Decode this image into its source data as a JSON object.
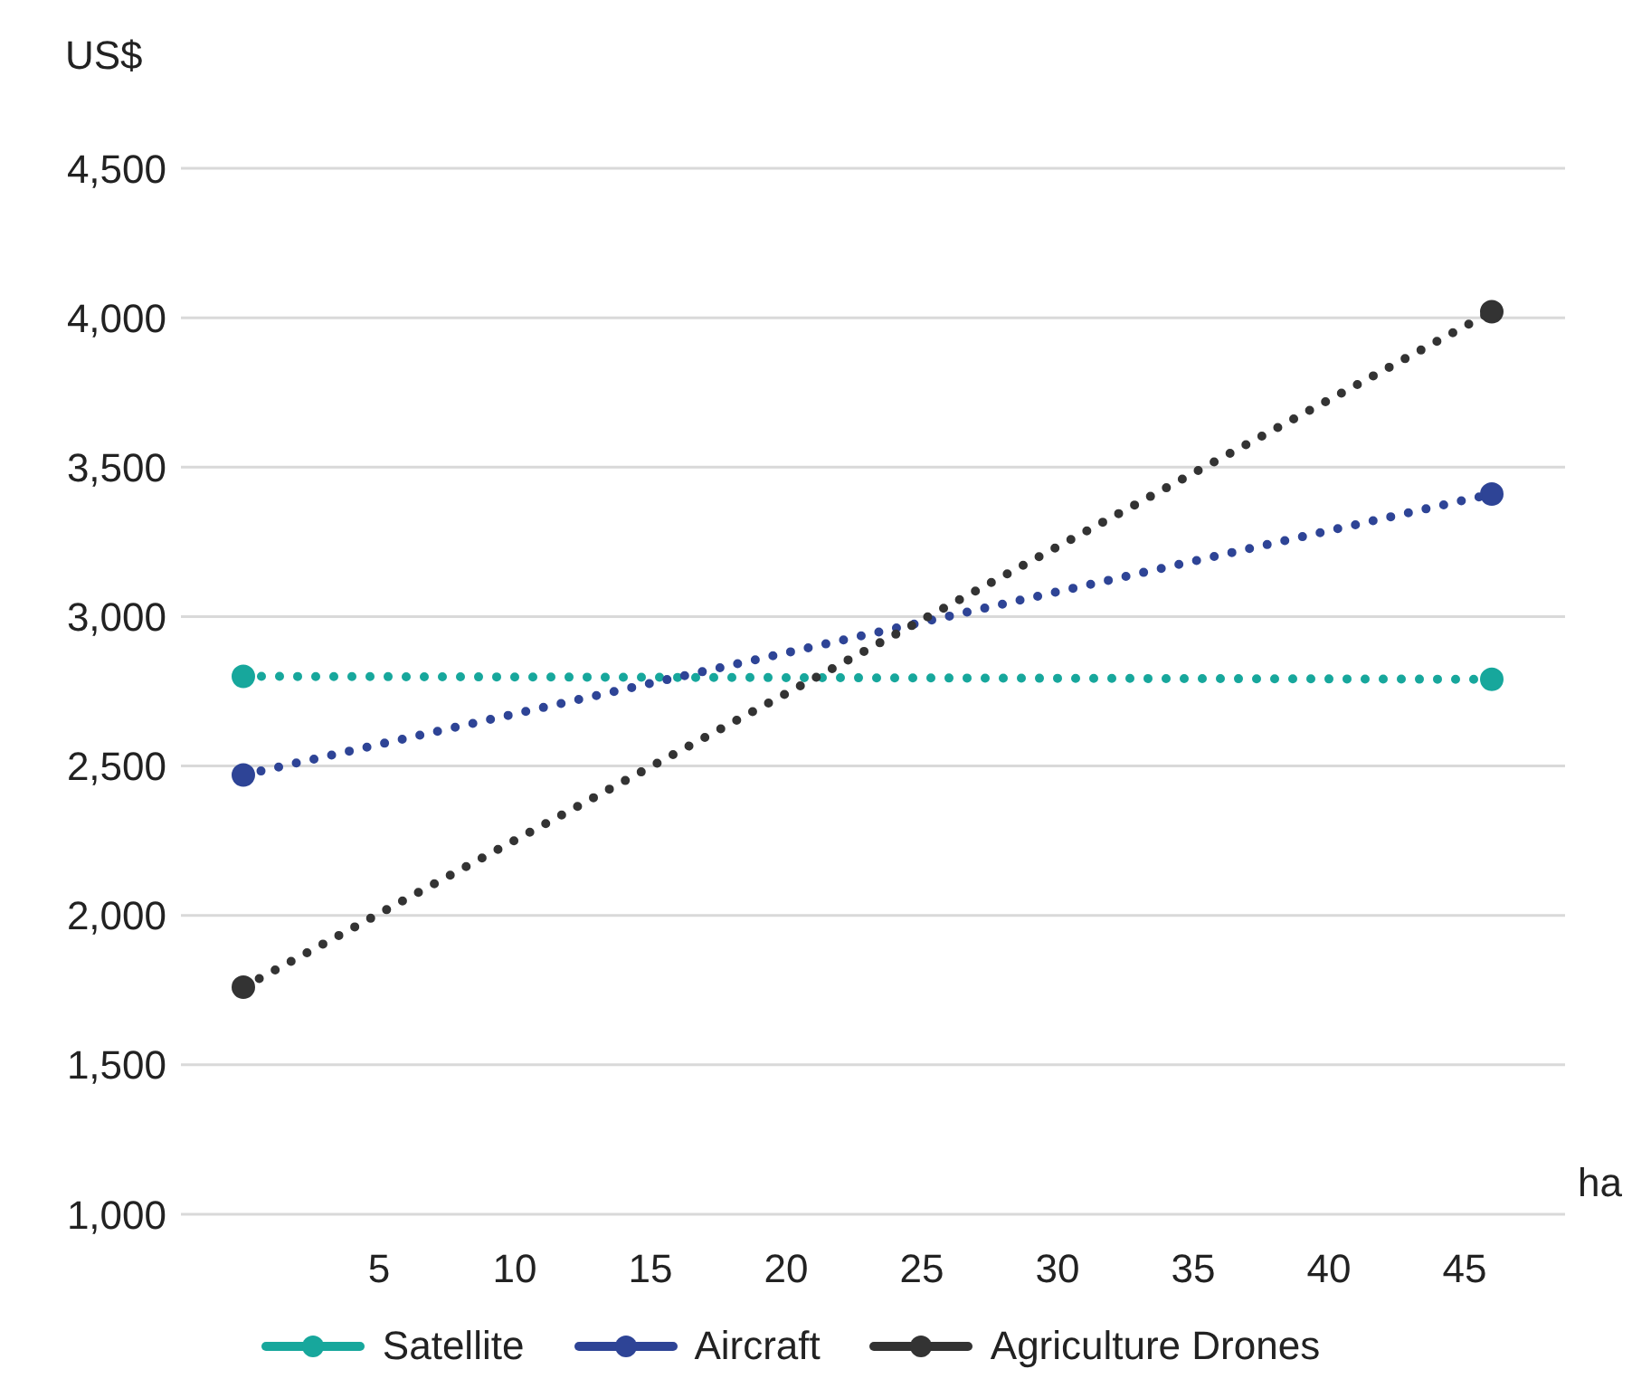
{
  "chart_data": {
    "type": "line",
    "ylabel": "US$",
    "xlabel": "ha",
    "x": [
      0,
      46
    ],
    "series": [
      {
        "name": "Satellite",
        "color": "#17a79c",
        "values": [
          2800,
          2790
        ]
      },
      {
        "name": "Aircraft",
        "color": "#2e4496",
        "values": [
          2470,
          3410
        ]
      },
      {
        "name": "Agriculture Drones",
        "color": "#333333",
        "values": [
          1760,
          4020
        ]
      }
    ],
    "xlim": [
      -2.3,
      48.7
    ],
    "xticks": [
      5,
      10,
      15,
      20,
      25,
      30,
      35,
      40,
      45
    ],
    "ylim": [
      1000,
      4500
    ],
    "yticks": [
      {
        "value": 1000,
        "label": "1,000"
      },
      {
        "value": 1500,
        "label": "1,500"
      },
      {
        "value": 2000,
        "label": "2,000"
      },
      {
        "value": 2500,
        "label": "2,500"
      },
      {
        "value": 3000,
        "label": "3,000"
      },
      {
        "value": 3500,
        "label": "3,500"
      },
      {
        "value": 4000,
        "label": "4,000"
      },
      {
        "value": 4500,
        "label": "4,500"
      }
    ],
    "grid": "y",
    "legend": "bottom",
    "marker": "circle",
    "line_style": "dotted"
  }
}
